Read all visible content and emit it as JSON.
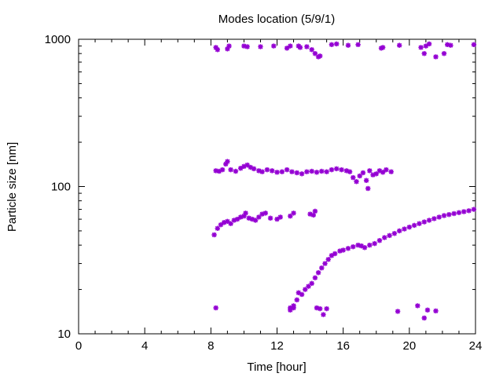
{
  "chart_data": {
    "type": "scatter",
    "title": "Modes location (5/9/1)",
    "xlabel": "Time [hour]",
    "ylabel": "Particle size [nm]",
    "xlim": [
      0,
      24
    ],
    "ylim": [
      10,
      1000
    ],
    "yscale": "log",
    "xticks": [
      0,
      4,
      8,
      12,
      16,
      20,
      24
    ],
    "xtick_labels": [
      "0",
      "4",
      "8",
      "12",
      "16",
      "20",
      "24"
    ],
    "yticks": [
      10,
      100,
      1000
    ],
    "ytick_labels": [
      "10",
      "100",
      "1000"
    ],
    "grid": false,
    "legend": "none",
    "marker_color": "#9400d3",
    "series": [
      {
        "values": [
          [
            8.3,
            880
          ],
          [
            8.4,
            850
          ],
          [
            9.0,
            860
          ],
          [
            9.1,
            900
          ],
          [
            10.0,
            900
          ],
          [
            10.2,
            890
          ],
          [
            11.0,
            890
          ],
          [
            11.8,
            900
          ],
          [
            12.6,
            870
          ],
          [
            12.8,
            900
          ],
          [
            13.3,
            900
          ],
          [
            13.4,
            880
          ],
          [
            13.8,
            890
          ],
          [
            14.1,
            850
          ],
          [
            14.3,
            800
          ],
          [
            14.5,
            760
          ],
          [
            14.6,
            770
          ],
          [
            15.3,
            920
          ],
          [
            15.6,
            930
          ],
          [
            16.3,
            910
          ],
          [
            16.9,
            920
          ],
          [
            18.3,
            870
          ],
          [
            18.4,
            880
          ],
          [
            19.4,
            910
          ],
          [
            20.7,
            880
          ],
          [
            20.9,
            800
          ],
          [
            21.0,
            900
          ],
          [
            21.2,
            930
          ],
          [
            21.6,
            760
          ],
          [
            22.1,
            800
          ],
          [
            22.3,
            920
          ],
          [
            22.5,
            910
          ],
          [
            23.9,
            920
          ],
          [
            8.3,
            128
          ],
          [
            8.5,
            127
          ],
          [
            8.7,
            130
          ],
          [
            8.9,
            142
          ],
          [
            9.0,
            148
          ],
          [
            9.2,
            130
          ],
          [
            9.5,
            127
          ],
          [
            9.8,
            133
          ],
          [
            10.0,
            137
          ],
          [
            10.2,
            140
          ],
          [
            10.4,
            135
          ],
          [
            10.6,
            132
          ],
          [
            10.9,
            128
          ],
          [
            11.1,
            126
          ],
          [
            11.4,
            130
          ],
          [
            11.7,
            128
          ],
          [
            12.0,
            125
          ],
          [
            12.3,
            126
          ],
          [
            12.6,
            130
          ],
          [
            12.9,
            126
          ],
          [
            13.2,
            124
          ],
          [
            13.5,
            122
          ],
          [
            13.8,
            126
          ],
          [
            14.1,
            127
          ],
          [
            14.4,
            125
          ],
          [
            14.7,
            127
          ],
          [
            15.0,
            126
          ],
          [
            15.3,
            130
          ],
          [
            15.6,
            132
          ],
          [
            15.9,
            130
          ],
          [
            16.2,
            128
          ],
          [
            16.4,
            126
          ],
          [
            16.6,
            115
          ],
          [
            16.8,
            108
          ],
          [
            17.0,
            118
          ],
          [
            17.2,
            124
          ],
          [
            17.4,
            110
          ],
          [
            17.6,
            128
          ],
          [
            17.8,
            120
          ],
          [
            18.0,
            122
          ],
          [
            18.2,
            128
          ],
          [
            18.4,
            125
          ],
          [
            18.6,
            130
          ],
          [
            18.9,
            126
          ],
          [
            17.5,
            97
          ],
          [
            8.2,
            47
          ],
          [
            8.4,
            52
          ],
          [
            8.6,
            55
          ],
          [
            8.8,
            57
          ],
          [
            9.0,
            58
          ],
          [
            9.2,
            56
          ],
          [
            9.4,
            59
          ],
          [
            9.6,
            60
          ],
          [
            9.8,
            62
          ],
          [
            10.0,
            63
          ],
          [
            10.1,
            66
          ],
          [
            10.3,
            61
          ],
          [
            10.5,
            60
          ],
          [
            10.7,
            59
          ],
          [
            10.9,
            62
          ],
          [
            11.1,
            65
          ],
          [
            11.3,
            66
          ],
          [
            11.6,
            61
          ],
          [
            12.0,
            60
          ],
          [
            12.2,
            62
          ],
          [
            12.8,
            63
          ],
          [
            13.0,
            66
          ],
          [
            14.0,
            65
          ],
          [
            14.2,
            64
          ],
          [
            14.3,
            68
          ],
          [
            12.8,
            15
          ],
          [
            13.0,
            15.5
          ],
          [
            13.2,
            17
          ],
          [
            13.3,
            19
          ],
          [
            13.5,
            18.5
          ],
          [
            13.7,
            20
          ],
          [
            13.9,
            21
          ],
          [
            14.1,
            22
          ],
          [
            14.3,
            24
          ],
          [
            14.5,
            26
          ],
          [
            14.7,
            28
          ],
          [
            14.9,
            30
          ],
          [
            15.1,
            32
          ],
          [
            15.3,
            34
          ],
          [
            15.5,
            35
          ],
          [
            15.8,
            36.5
          ],
          [
            16.0,
            37
          ],
          [
            16.3,
            38
          ],
          [
            16.6,
            39
          ],
          [
            16.9,
            40
          ],
          [
            17.1,
            39.5
          ],
          [
            17.3,
            38.5
          ],
          [
            17.6,
            40
          ],
          [
            17.9,
            41
          ],
          [
            18.2,
            43
          ],
          [
            18.5,
            45
          ],
          [
            18.8,
            46.5
          ],
          [
            19.1,
            48
          ],
          [
            19.4,
            50
          ],
          [
            19.7,
            51.5
          ],
          [
            20.0,
            53
          ],
          [
            20.3,
            54.5
          ],
          [
            20.6,
            56
          ],
          [
            20.9,
            57.5
          ],
          [
            21.2,
            59
          ],
          [
            21.5,
            60.5
          ],
          [
            21.8,
            62
          ],
          [
            22.1,
            63.5
          ],
          [
            22.4,
            64.5
          ],
          [
            22.7,
            65.5
          ],
          [
            23.0,
            66.5
          ],
          [
            23.3,
            67.5
          ],
          [
            23.6,
            68.5
          ],
          [
            23.9,
            70
          ],
          [
            8.3,
            15
          ],
          [
            12.8,
            14.5
          ],
          [
            13.0,
            15
          ],
          [
            14.4,
            15
          ],
          [
            14.6,
            14.8
          ],
          [
            14.8,
            13.5
          ],
          [
            15.0,
            14.8
          ],
          [
            19.3,
            14.2
          ],
          [
            20.5,
            15.5
          ],
          [
            20.9,
            12.8
          ],
          [
            21.1,
            14.5
          ],
          [
            21.6,
            14.3
          ]
        ]
      }
    ]
  }
}
